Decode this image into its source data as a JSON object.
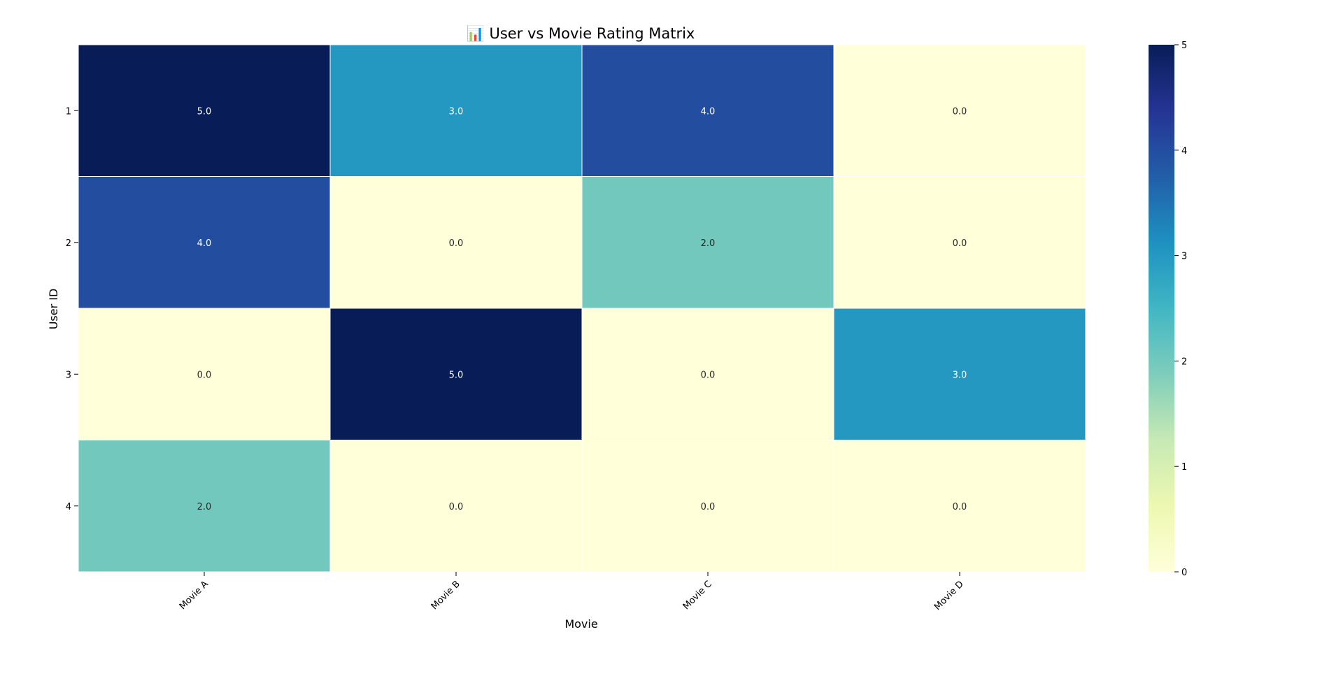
{
  "chart_data": {
    "type": "heatmap",
    "title": "📊 User vs Movie Rating Matrix",
    "xlabel": "Movie",
    "ylabel": "User ID",
    "x_categories": [
      "Movie A",
      "Movie B",
      "Movie C",
      "Movie D"
    ],
    "y_categories": [
      "1",
      "2",
      "3",
      "4"
    ],
    "values": [
      [
        5.0,
        3.0,
        4.0,
        0.0
      ],
      [
        4.0,
        0.0,
        2.0,
        0.0
      ],
      [
        0.0,
        5.0,
        0.0,
        3.0
      ],
      [
        2.0,
        0.0,
        0.0,
        0.0
      ]
    ],
    "value_format": "0.0",
    "colormap": "YlGnBu",
    "colorbar": {
      "range": [
        0,
        5
      ],
      "ticks": [
        "0",
        "1",
        "2",
        "3",
        "4",
        "5"
      ]
    },
    "colors": {
      "0": "#ffffd9",
      "2": "#73c8bd",
      "3": "#2498c1",
      "4": "#234ea0",
      "5": "#081d58"
    },
    "grid": false
  }
}
